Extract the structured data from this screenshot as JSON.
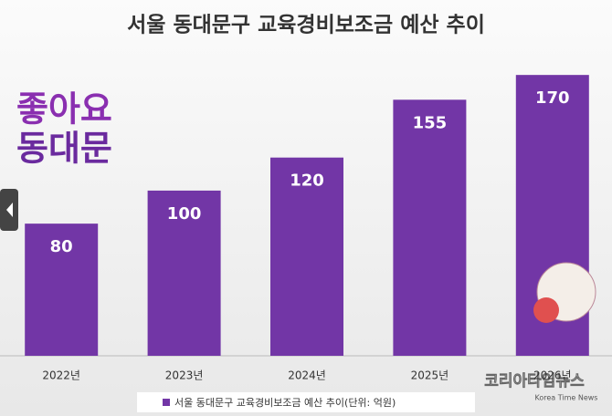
{
  "chart_data": {
    "type": "bar",
    "title": "서울 동대문구 교육경비보조금 예산 추이",
    "categories": [
      "2022년",
      "2023년",
      "2024년",
      "2025년",
      "2026년"
    ],
    "series": [
      {
        "name": "서울 동대문구 교육경비보조금 예산 추이(단위: 억원)",
        "color": "#7236a6",
        "values": [
          80,
          100,
          120,
          155,
          170
        ]
      }
    ],
    "ylim": [
      0,
      185
    ],
    "annotations": [
      "좋아요",
      "동대문",
      "코리아타임뉴스",
      "Korea Time News"
    ]
  }
}
